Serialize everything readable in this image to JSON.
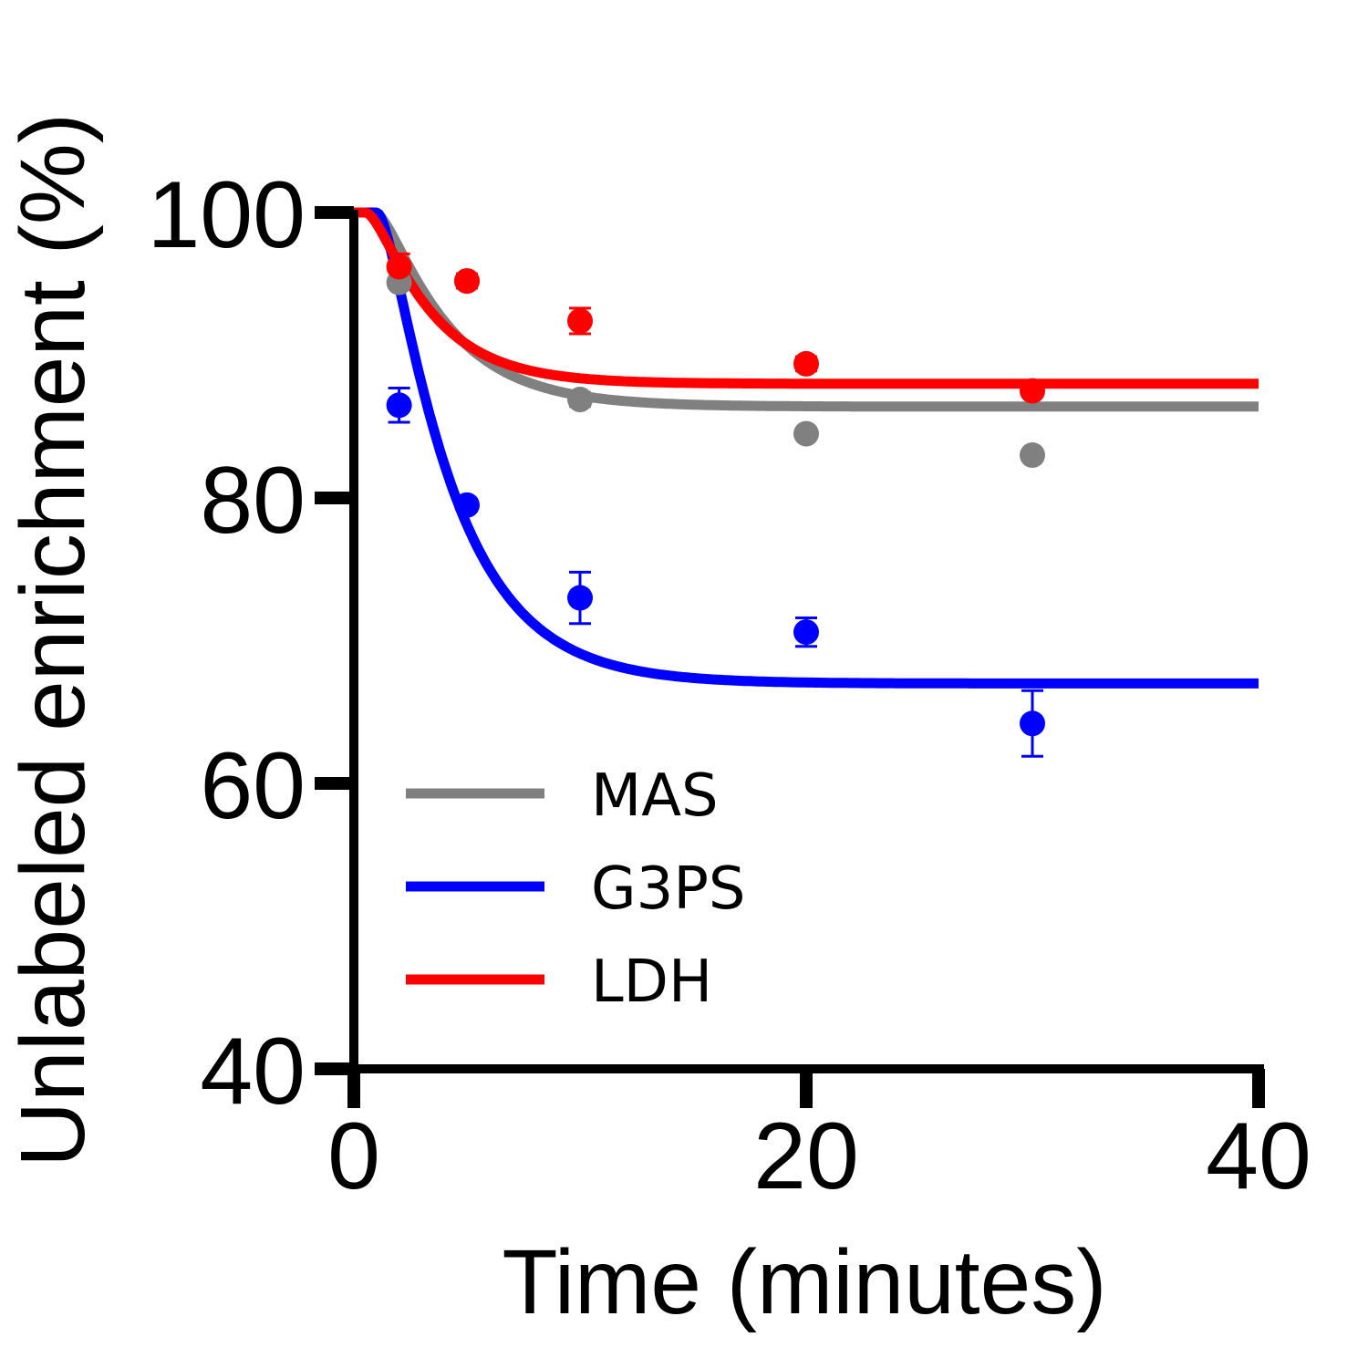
{
  "chart_data": {
    "type": "scatter",
    "title": "",
    "xlabel": "Time (minutes)",
    "ylabel": "Unlabeled enrichment (%)",
    "xlim": [
      0,
      40
    ],
    "ylim": [
      40,
      100
    ],
    "xticks": [
      0,
      20,
      40
    ],
    "yticks": [
      40,
      60,
      80,
      100
    ],
    "grid": false,
    "legend_position": "lower-left",
    "series": [
      {
        "name": "MAS",
        "color": "#808080",
        "x": [
          2,
          5,
          10,
          20,
          30
        ],
        "y": [
          95.1,
          95.2,
          86.9,
          84.5,
          83.0
        ],
        "err": [
          0.4,
          0.3,
          0.5,
          0.3,
          0.3
        ],
        "fit": {
          "plateau": 86.4,
          "k": 0.35,
          "lag": 0.9
        }
      },
      {
        "name": "G3PS",
        "color": "#0000ff",
        "x": [
          2,
          5,
          10,
          20,
          30
        ],
        "y": [
          86.5,
          79.5,
          73.0,
          70.6,
          64.2
        ],
        "err": [
          1.2,
          0.4,
          1.8,
          1.0,
          2.3
        ],
        "fit": {
          "plateau": 67.0,
          "k": 0.34,
          "lag": 1.0
        }
      },
      {
        "name": "LDH",
        "color": "#ff0000",
        "x": [
          2,
          5,
          10,
          20,
          30
        ],
        "y": [
          96.2,
          95.2,
          92.4,
          89.4,
          87.5
        ],
        "err": [
          0.9,
          0.5,
          0.9,
          0.5,
          0.3
        ],
        "fit": {
          "plateau": 88.0,
          "k": 0.4,
          "lag": 0.5
        }
      }
    ]
  }
}
